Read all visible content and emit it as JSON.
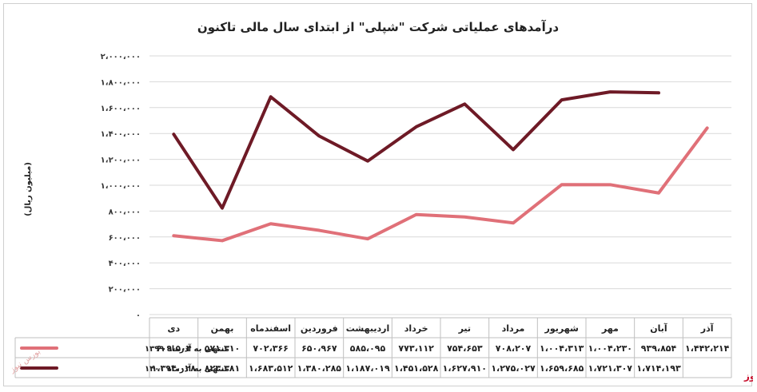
{
  "chart_data": {
    "type": "line",
    "title": "درآمدهای عملیاتی شرکت \"شپلی\" از ابتدای سال مالی تاکنون",
    "ylabel": "(میلیون ریال)",
    "ylim": [
      0,
      2000000
    ],
    "yticks": [
      {
        "value": 0,
        "label": "۰"
      },
      {
        "value": 200000,
        "label": "۲۰۰،۰۰۰"
      },
      {
        "value": 400000,
        "label": "۴۰۰،۰۰۰"
      },
      {
        "value": 600000,
        "label": "۶۰۰،۰۰۰"
      },
      {
        "value": 800000,
        "label": "۸۰۰،۰۰۰"
      },
      {
        "value": 1000000,
        "label": "۱،۰۰۰،۰۰۰"
      },
      {
        "value": 1200000,
        "label": "۱،۲۰۰،۰۰۰"
      },
      {
        "value": 1400000,
        "label": "۱،۴۰۰،۰۰۰"
      },
      {
        "value": 1600000,
        "label": "۱،۶۰۰،۰۰۰"
      },
      {
        "value": 1800000,
        "label": "۱،۸۰۰،۰۰۰"
      },
      {
        "value": 2000000,
        "label": "۲،۰۰۰،۰۰۰"
      }
    ],
    "categories": [
      "آذر",
      "آبان",
      "مهر",
      "شهریور",
      "مرداد",
      "تیر",
      "خرداد",
      "اردیبهشت",
      "فروردین",
      "اسفندماه",
      "بهمن",
      "دی"
    ],
    "series": [
      {
        "name": "منتهی به آذرماه ۱۳۹۹",
        "color": "#e07078",
        "values": [
          1442214,
          939854,
          1004230,
          1004313,
          708207,
          754653,
          773112,
          585095,
          650967,
          702366,
          571310,
          609504
        ],
        "labels": [
          "۱،۴۴۲،۲۱۴",
          "۹۳۹،۸۵۴",
          "۱،۰۰۴،۲۳۰",
          "۱،۰۰۴،۳۱۳",
          "۷۰۸،۲۰۷",
          "۷۵۴،۶۵۳",
          "۷۷۳،۱۱۲",
          "۵۸۵،۰۹۵",
          "۶۵۰،۹۶۷",
          "۷۰۲،۳۶۶",
          "۵۷۱،۳۱۰",
          "۶۰۹،۵۰۴"
        ]
      },
      {
        "name": "منتهی به آذرماه ۱۴۰۰",
        "color": "#6e1a26",
        "values": [
          null,
          1714193,
          1721307,
          1659685,
          1275027,
          1627910,
          1451528,
          1187019,
          1380285,
          1683512,
          823381,
          1394028
        ],
        "labels": [
          "",
          "۱،۷۱۴،۱۹۳",
          "۱،۷۲۱،۳۰۷",
          "۱،۶۵۹،۶۸۵",
          "۱،۲۷۵،۰۲۷",
          "۱،۶۲۷،۹۱۰",
          "۱،۴۵۱،۵۲۸",
          "۱،۱۸۷،۰۱۹",
          "۱،۳۸۰،۲۸۵",
          "۱،۶۸۳،۵۱۲",
          "۸۲۳،۳۸۱",
          "۱،۳۹۴،۰۲۸"
        ]
      }
    ],
    "grid": true,
    "legend": "data-table-left"
  },
  "footer": {
    "source": "بورس نیوز",
    "watermark": "بورس نیوز"
  }
}
